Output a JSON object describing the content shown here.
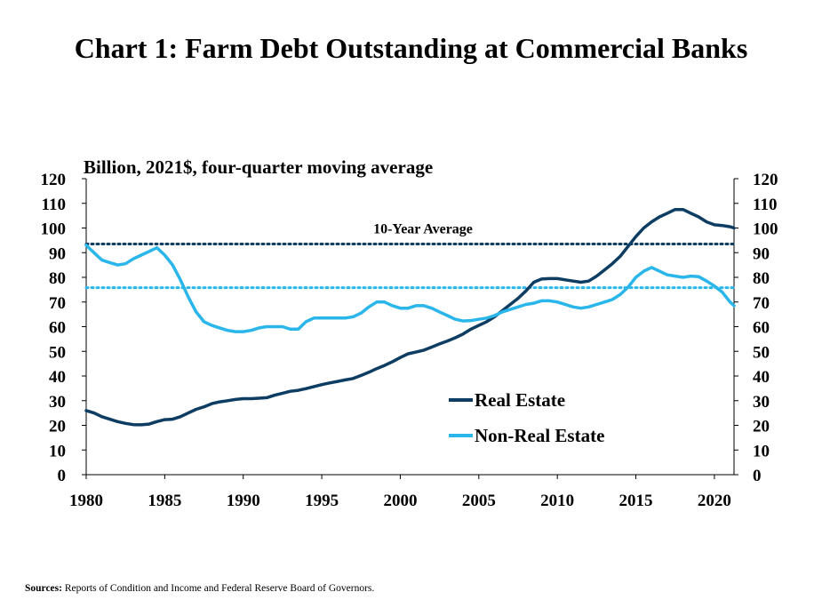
{
  "title": "Chart 1: Farm Debt Outstanding at Commercial  Banks",
  "source_label": "Sources:",
  "source_text": "Reports of Condition and Income and Federal Reserve Board of Governors.",
  "colors": {
    "real_estate": "#0d3d62",
    "non_real_estate": "#2ab6ea",
    "axis": "#000000"
  },
  "chart_data": {
    "type": "line",
    "title": "Chart 1: Farm Debt Outstanding at Commercial  Banks",
    "ylabel": "Billion, 2021$, four-quarter moving average",
    "xlabel": "",
    "xlim": [
      1980,
      2021.25
    ],
    "ylim": [
      0,
      120
    ],
    "x_ticks": [
      "1980",
      "1985",
      "1990",
      "1995",
      "2000",
      "2005",
      "2010",
      "2015",
      "2020"
    ],
    "y_ticks": [
      "0",
      "10",
      "20",
      "30",
      "40",
      "50",
      "60",
      "70",
      "80",
      "90",
      "100",
      "110",
      "120"
    ],
    "legend_position": "lower-right",
    "series": [
      {
        "name": "Real Estate",
        "color": "#0d3d62",
        "x": [
          1980,
          1980.5,
          1981,
          1981.5,
          1982,
          1982.5,
          1983,
          1983.5,
          1984,
          1984.5,
          1985,
          1985.5,
          1986,
          1986.5,
          1987,
          1987.5,
          1988,
          1988.5,
          1989,
          1989.5,
          1990,
          1990.5,
          1991,
          1991.5,
          1992,
          1992.5,
          1993,
          1993.5,
          1994,
          1994.5,
          1995,
          1995.5,
          1996,
          1996.5,
          1997,
          1997.5,
          1998,
          1998.5,
          1999,
          1999.5,
          2000,
          2000.5,
          2001,
          2001.5,
          2002,
          2002.5,
          2003,
          2003.5,
          2004,
          2004.5,
          2005,
          2005.5,
          2006,
          2006.5,
          2007,
          2007.5,
          2008,
          2008.5,
          2009,
          2009.5,
          2010,
          2010.5,
          2011,
          2011.5,
          2012,
          2012.5,
          2013,
          2013.5,
          2014,
          2014.5,
          2015,
          2015.5,
          2016,
          2016.5,
          2017,
          2017.5,
          2018,
          2018.5,
          2019,
          2019.5,
          2020,
          2020.5,
          2021,
          2021.25
        ],
        "values": [
          26,
          25,
          23.5,
          22.5,
          21.5,
          20.8,
          20.3,
          20.2,
          20.5,
          21.5,
          22.3,
          22.5,
          23.5,
          25,
          26.5,
          27.5,
          28.8,
          29.5,
          30,
          30.5,
          30.8,
          30.8,
          31,
          31.2,
          32.2,
          33,
          33.8,
          34.2,
          34.9,
          35.7,
          36.5,
          37.2,
          37.8,
          38.4,
          39,
          40.2,
          41.5,
          43,
          44.3,
          45.8,
          47.5,
          49,
          49.7,
          50.5,
          51.7,
          53,
          54.2,
          55.5,
          57,
          59,
          60.5,
          62,
          64,
          66.5,
          69,
          71.5,
          74.5,
          78,
          79.3,
          79.5,
          79.5,
          79,
          78.5,
          78,
          78.5,
          80.5,
          83,
          85.5,
          88.5,
          92.5,
          96.5,
          100,
          102.5,
          104.5,
          106,
          107.5,
          107.5,
          106,
          104.5,
          102.5,
          101.3,
          101,
          100.5,
          100
        ],
        "_note": "values sampled every half year"
      },
      {
        "name": "Non-Real Estate",
        "color": "#2ab6ea",
        "x": [
          1980,
          1980.5,
          1981,
          1981.5,
          1982,
          1982.5,
          1983,
          1983.5,
          1984,
          1984.5,
          1985,
          1985.5,
          1986,
          1986.5,
          1987,
          1987.5,
          1988,
          1988.5,
          1989,
          1989.5,
          1990,
          1990.5,
          1991,
          1991.5,
          1992,
          1992.5,
          1993,
          1993.5,
          1994,
          1994.5,
          1995,
          1995.5,
          1996,
          1996.5,
          1997,
          1997.5,
          1998,
          1998.5,
          1999,
          1999.5,
          2000,
          2000.5,
          2001,
          2001.5,
          2002,
          2002.5,
          2003,
          2003.5,
          2004,
          2004.5,
          2005,
          2005.5,
          2006,
          2006.5,
          2007,
          2007.5,
          2008,
          2008.5,
          2009,
          2009.5,
          2010,
          2010.5,
          2011,
          2011.5,
          2012,
          2012.5,
          2013,
          2013.5,
          2014,
          2014.5,
          2015,
          2015.5,
          2016,
          2016.5,
          2017,
          2017.5,
          2018,
          2018.5,
          2019,
          2019.5,
          2020,
          2020.5,
          2021,
          2021.25
        ],
        "values": [
          93,
          90,
          87,
          86,
          85,
          85.5,
          87.5,
          89,
          90.5,
          92,
          89,
          85,
          79,
          72,
          66,
          62,
          60.5,
          59.5,
          58.5,
          58,
          58,
          58.5,
          59.5,
          60,
          60,
          60,
          59,
          59,
          62,
          63.5,
          63.5,
          63.5,
          63.5,
          63.5,
          64,
          65.5,
          68,
          70,
          70,
          68.5,
          67.5,
          67.5,
          68.5,
          68.5,
          67.5,
          66,
          64.5,
          63,
          62.3,
          62.5,
          63,
          63.5,
          64.5,
          66,
          67,
          68,
          69,
          69.5,
          70.5,
          70.5,
          70,
          69,
          68,
          67.5,
          68,
          69,
          70,
          71,
          73,
          76,
          80,
          82.5,
          84,
          82.5,
          81,
          80.5,
          80,
          80.5,
          80.3,
          78.5,
          76.5,
          74,
          70,
          68.5
        ],
        "_note": "values sampled every half year"
      }
    ],
    "reference_lines": [
      {
        "name": "Real Estate 10-Year Average",
        "value": 93.5,
        "color": "#0d3d62",
        "label": "10-Year Average"
      },
      {
        "name": "Non-Real Estate 10-Year Average",
        "value": 75.8,
        "color": "#2ab6ea",
        "label": ""
      }
    ]
  }
}
